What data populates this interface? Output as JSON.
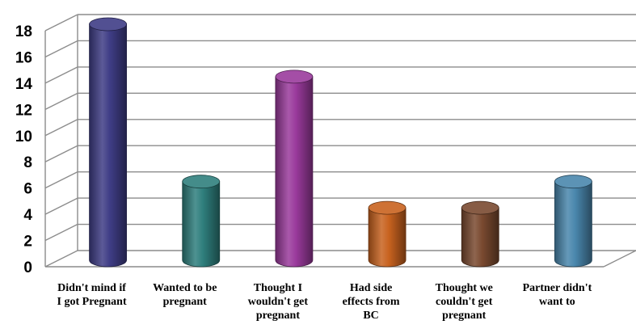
{
  "chart_data": {
    "type": "bar",
    "style": "3d-cylinder",
    "title": "",
    "xlabel": "",
    "ylabel": "",
    "ylim": [
      0,
      18
    ],
    "yticks": [
      0,
      2,
      4,
      6,
      8,
      10,
      12,
      14,
      16,
      18
    ],
    "grid": true,
    "legend": "none",
    "categories": [
      [
        "Didn't mind if",
        "I got Pregnant"
      ],
      [
        "Wanted to be",
        "pregnant"
      ],
      [
        "Thought I",
        "wouldn't get",
        "pregnant"
      ],
      [
        "Had side",
        "effects from",
        "BC"
      ],
      [
        "Thought we",
        "couldn't get",
        "pregnant"
      ],
      [
        "Partner didn't",
        "want to"
      ]
    ],
    "values": [
      18,
      6,
      14,
      4,
      4,
      6
    ],
    "colors": [
      "#3f3d86",
      "#2f7f7d",
      "#9a3a9c",
      "#c8621f",
      "#7a4a30",
      "#4a87ad"
    ]
  }
}
